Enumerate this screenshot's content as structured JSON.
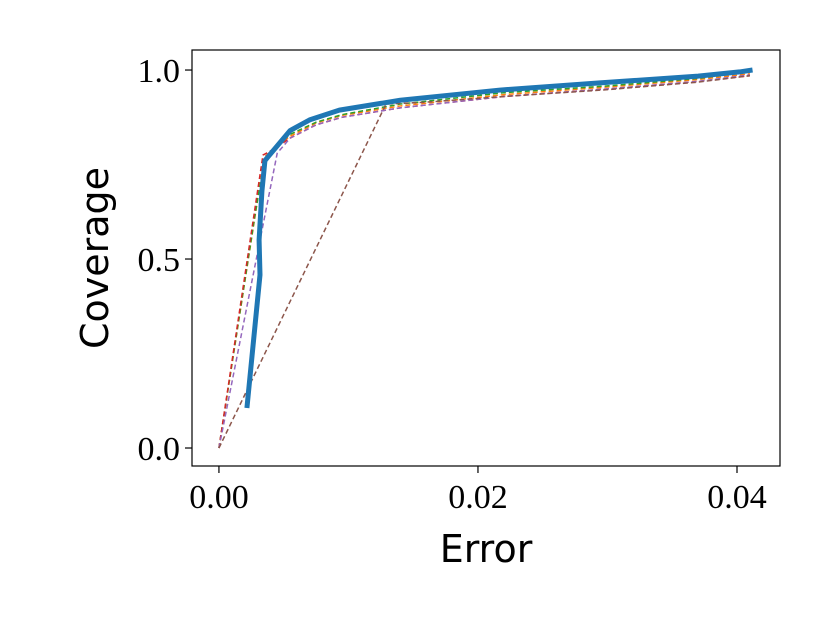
{
  "chart_data": {
    "type": "line",
    "xlabel": "Error",
    "ylabel": "Coverage",
    "xlim": [
      -0.00208,
      0.04332
    ],
    "ylim": [
      -0.0476,
      1.053
    ],
    "xticks": [
      {
        "value": 0,
        "label": "0.00"
      },
      {
        "value": 0.02,
        "label": "0.02"
      },
      {
        "value": 0.04,
        "label": "0.04"
      }
    ],
    "yticks": [
      {
        "value": 0,
        "label": "0.0"
      },
      {
        "value": 0.5,
        "label": "0.5"
      },
      {
        "value": 1,
        "label": "1.0"
      }
    ],
    "series": [
      {
        "color": "#ff7f0e",
        "dash": true,
        "x": [
          0,
          0.0035,
          0.0042,
          0.0055,
          0.0075,
          0.0095,
          0.014,
          0.022,
          0.03,
          0.037,
          0.041
        ],
        "values": [
          0,
          0.77,
          0.79,
          0.825,
          0.86,
          0.88,
          0.905,
          0.935,
          0.955,
          0.975,
          0.99
        ]
      },
      {
        "color": "#2ca02c",
        "dash": true,
        "x": [
          0,
          0.0028,
          0.0035,
          0.0042,
          0.0055,
          0.0075,
          0.0095,
          0.014,
          0.022,
          0.03,
          0.037,
          0.041
        ],
        "values": [
          0,
          0.62,
          0.76,
          0.79,
          0.83,
          0.862,
          0.882,
          0.91,
          0.94,
          0.958,
          0.978,
          0.995
        ]
      },
      {
        "color": "#d62728",
        "dash": true,
        "x": [
          0,
          0.0034,
          0.0042,
          0.0055,
          0.0075,
          0.0095,
          0.014,
          0.022,
          0.03,
          0.037,
          0.041
        ],
        "values": [
          0,
          0.775,
          0.79,
          0.82,
          0.855,
          0.875,
          0.9,
          0.93,
          0.95,
          0.97,
          0.985
        ]
      },
      {
        "color": "#9467bd",
        "dash": true,
        "x": [
          0,
          0.0045,
          0.0055,
          0.0075,
          0.0095,
          0.014,
          0.022,
          0.03,
          0.037,
          0.041
        ],
        "values": [
          0,
          0.78,
          0.82,
          0.855,
          0.875,
          0.9,
          0.93,
          0.95,
          0.97,
          0.987
        ]
      },
      {
        "color": "#8c564b",
        "dash": true,
        "x": [
          0,
          0.0129,
          0.016,
          0.022,
          0.03,
          0.037,
          0.041
        ],
        "values": [
          0,
          0.91,
          0.915,
          0.93,
          0.948,
          0.968,
          0.985
        ]
      },
      {
        "color": "#1f77b4",
        "dash": false,
        "x": [
          0.00216,
          0.00317,
          0.0031,
          0.00332,
          0.00355,
          0.0039,
          0.0055,
          0.007,
          0.0093,
          0.014,
          0.0217,
          0.0294,
          0.037,
          0.0402,
          0.0412
        ],
        "values": [
          0.106,
          0.458,
          0.55,
          0.68,
          0.76,
          0.775,
          0.84,
          0.868,
          0.894,
          0.92,
          0.947,
          0.966,
          0.984,
          0.995,
          1.0
        ]
      }
    ]
  }
}
